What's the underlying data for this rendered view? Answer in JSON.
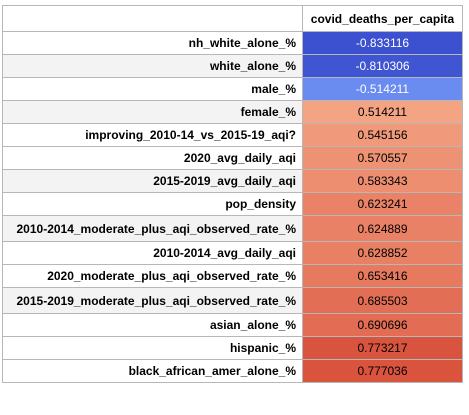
{
  "chart_data": {
    "type": "table",
    "column_header": "covid_deaths_per_capita",
    "rows": [
      {
        "label": "nh_white_alone_%",
        "value": "-0.833116"
      },
      {
        "label": "white_alone_%",
        "value": "-0.810306"
      },
      {
        "label": "male_%",
        "value": "-0.514211"
      },
      {
        "label": "female_%",
        "value": "0.514211"
      },
      {
        "label": "improving_2010-14_vs_2015-19_aqi?",
        "value": "0.545156"
      },
      {
        "label": "2020_avg_daily_aqi",
        "value": "0.570557"
      },
      {
        "label": "2015-2019_avg_daily_aqi",
        "value": "0.583343"
      },
      {
        "label": "pop_density",
        "value": "0.623241"
      },
      {
        "label": "2010-2014_moderate_plus_aqi_observed_rate_%",
        "value": "0.624889"
      },
      {
        "label": "2010-2014_avg_daily_aqi",
        "value": "0.628852"
      },
      {
        "label": "2020_moderate_plus_aqi_observed_rate_%",
        "value": "0.653416"
      },
      {
        "label": "2015-2019_moderate_plus_aqi_observed_rate_%",
        "value": "0.685503"
      },
      {
        "label": "asian_alone_%",
        "value": "0.690696"
      },
      {
        "label": "hispanic_%",
        "value": "0.773217"
      },
      {
        "label": "black_african_amer_alone_%",
        "value": "0.777036"
      }
    ],
    "colors": {
      "negative_strong": "#3c51d0",
      "negative_weak": "#6a8cf1",
      "positive_weak": "#f4a383",
      "positive_strong": "#d9533d"
    }
  }
}
